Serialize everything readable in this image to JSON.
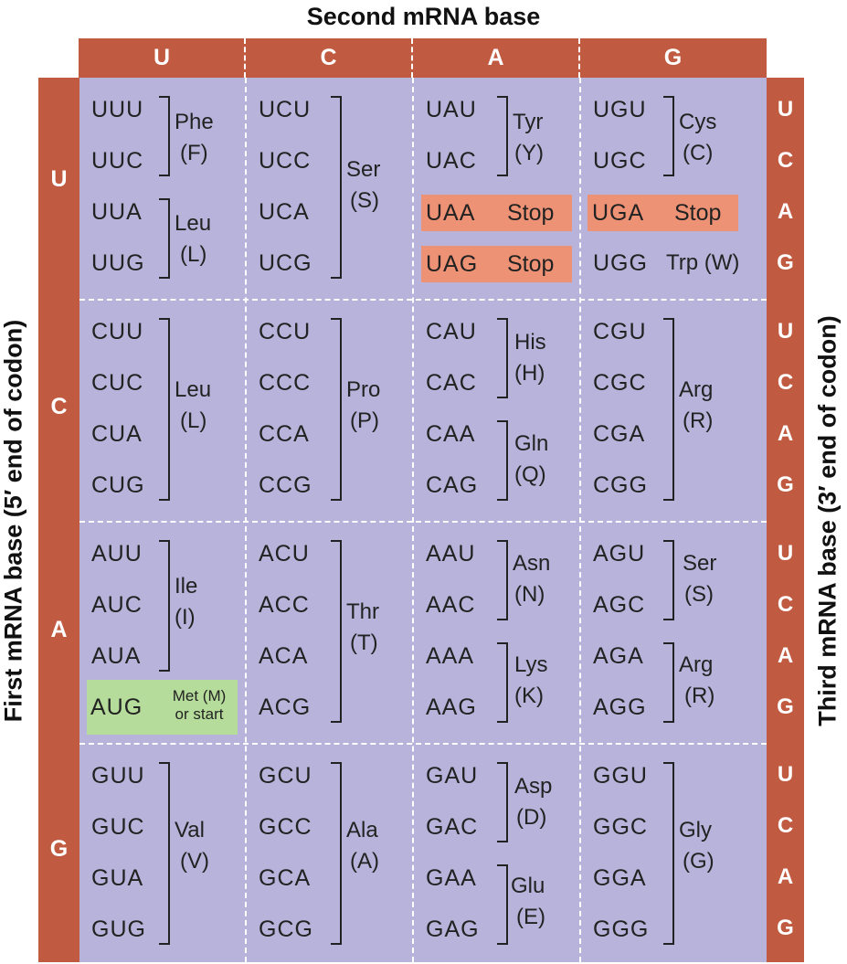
{
  "title_second": "Second mRNA base",
  "title_first": "First mRNA base  (5′ end of codon)",
  "title_third": "Third mRNA base  (3′ end of codon)",
  "second_bases": [
    "U",
    "C",
    "A",
    "G"
  ],
  "first_bases": [
    "U",
    "C",
    "A",
    "G"
  ],
  "third_bases": [
    "U",
    "C",
    "A",
    "G"
  ],
  "colors": {
    "header": "#c05a40",
    "grid": "#b7b3da",
    "stop": "#ee9275",
    "start": "#b5dc9a"
  },
  "cells": {
    "UU": {
      "codons": [
        "UUU",
        "UUC",
        "UUA",
        "UUG"
      ],
      "aa": [
        [
          "Phe",
          "(F)"
        ],
        [
          "Leu",
          "(L)"
        ]
      ]
    },
    "UC": {
      "codons": [
        "UCU",
        "UCC",
        "UCA",
        "UCG"
      ],
      "aa": [
        [
          "Ser",
          "(S)"
        ]
      ]
    },
    "UA": {
      "codons": [
        "UAU",
        "UAC",
        "UAA",
        "UAG"
      ],
      "aa": [
        [
          "Tyr",
          "(Y)"
        ]
      ],
      "stop": "Stop"
    },
    "UG": {
      "codons": [
        "UGU",
        "UGC",
        "UGA",
        "UGG"
      ],
      "aa": [
        [
          "Cys",
          "(C)"
        ]
      ],
      "stop": "Stop",
      "trp": "Trp (W)"
    },
    "CU": {
      "codons": [
        "CUU",
        "CUC",
        "CUA",
        "CUG"
      ],
      "aa": [
        [
          "Leu",
          "(L)"
        ]
      ]
    },
    "CC": {
      "codons": [
        "CCU",
        "CCC",
        "CCA",
        "CCG"
      ],
      "aa": [
        [
          "Pro",
          "(P)"
        ]
      ]
    },
    "CA": {
      "codons": [
        "CAU",
        "CAC",
        "CAA",
        "CAG"
      ],
      "aa": [
        [
          "His",
          "(H)"
        ],
        [
          "Gln",
          "(Q)"
        ]
      ]
    },
    "CG": {
      "codons": [
        "CGU",
        "CGC",
        "CGA",
        "CGG"
      ],
      "aa": [
        [
          "Arg",
          "(R)"
        ]
      ]
    },
    "AU": {
      "codons": [
        "AUU",
        "AUC",
        "AUA",
        "AUG"
      ],
      "aa": [
        [
          "Ile",
          "(I)"
        ]
      ],
      "start": [
        "Met (M)",
        "or start"
      ]
    },
    "AC": {
      "codons": [
        "ACU",
        "ACC",
        "ACA",
        "ACG"
      ],
      "aa": [
        [
          "Thr",
          "(T)"
        ]
      ]
    },
    "AA": {
      "codons": [
        "AAU",
        "AAC",
        "AAA",
        "AAG"
      ],
      "aa": [
        [
          "Asn",
          "(N)"
        ],
        [
          "Lys",
          "(K)"
        ]
      ]
    },
    "AG": {
      "codons": [
        "AGU",
        "AGC",
        "AGA",
        "AGG"
      ],
      "aa": [
        [
          "Ser",
          "(S)"
        ],
        [
          "Arg",
          "(R)"
        ]
      ]
    },
    "GU": {
      "codons": [
        "GUU",
        "GUC",
        "GUA",
        "GUG"
      ],
      "aa": [
        [
          "Val",
          "(V)"
        ]
      ]
    },
    "GC": {
      "codons": [
        "GCU",
        "GCC",
        "GCA",
        "GCG"
      ],
      "aa": [
        [
          "Ala",
          "(A)"
        ]
      ]
    },
    "GA": {
      "codons": [
        "GAU",
        "GAC",
        "GAA",
        "GAG"
      ],
      "aa": [
        [
          "Asp",
          "(D)"
        ],
        [
          "Glu",
          "(E)"
        ]
      ]
    },
    "GG": {
      "codons": [
        "GGU",
        "GGC",
        "GGA",
        "GGG"
      ],
      "aa": [
        [
          "Gly",
          "(G)"
        ]
      ]
    }
  }
}
